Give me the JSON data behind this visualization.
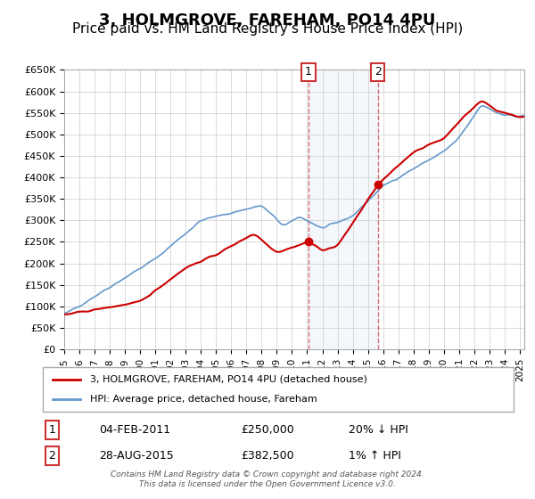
{
  "title": "3, HOLMGROVE, FAREHAM, PO14 4PU",
  "subtitle": "Price paid vs. HM Land Registry's House Price Index (HPI)",
  "ylabel_ticks": [
    "£0",
    "£50K",
    "£100K",
    "£150K",
    "£200K",
    "£250K",
    "£300K",
    "£350K",
    "£400K",
    "£450K",
    "£500K",
    "£550K",
    "£600K",
    "£650K"
  ],
  "ylim": [
    0,
    650000
  ],
  "xlim_start": 1995.0,
  "xlim_end": 2025.3,
  "sale1_date": 2011.09,
  "sale1_price": 250000,
  "sale1_label": "1",
  "sale2_date": 2015.65,
  "sale2_price": 382500,
  "sale2_label": "2",
  "shade_start": 2011.09,
  "shade_end": 2015.65,
  "red_line_color": "#cc0000",
  "blue_line_color": "#6699cc",
  "sale_dot_color": "#cc0000",
  "grid_color": "#cccccc",
  "background_color": "#ffffff",
  "legend_line1": "3, HOLMGROVE, FAREHAM, PO14 4PU (detached house)",
  "legend_line2": "HPI: Average price, detached house, Fareham",
  "annotation1_date": "04-FEB-2011",
  "annotation1_price": "£250,000",
  "annotation1_hpi": "20% ↓ HPI",
  "annotation2_date": "28-AUG-2015",
  "annotation2_price": "£382,500",
  "annotation2_hpi": "1% ↑ HPI",
  "footer": "Contains HM Land Registry data © Crown copyright and database right 2024.\nThis data is licensed under the Open Government Licence v3.0.",
  "title_fontsize": 13,
  "subtitle_fontsize": 11
}
